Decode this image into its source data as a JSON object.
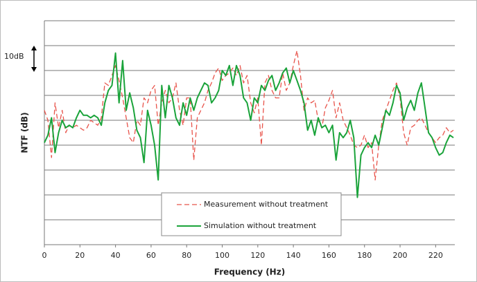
{
  "chart_data": {
    "type": "line",
    "xlabel": "Frequency (Hz)",
    "ylabel": "NTF (dB)",
    "annotation": "10dB",
    "xlim": [
      0,
      230
    ],
    "xticks": [
      0,
      20,
      40,
      60,
      80,
      100,
      120,
      140,
      160,
      180,
      200,
      220
    ],
    "ylim": [
      0,
      90
    ],
    "yticks": [
      10,
      20,
      30,
      40,
      50,
      60,
      70,
      80,
      90
    ],
    "grid": true,
    "x": [
      0,
      2,
      4,
      6,
      8,
      10,
      12,
      14,
      16,
      18,
      20,
      22,
      24,
      26,
      28,
      30,
      32,
      34,
      36,
      38,
      40,
      42,
      44,
      46,
      48,
      50,
      52,
      54,
      56,
      58,
      60,
      62,
      64,
      66,
      68,
      70,
      72,
      74,
      76,
      78,
      80,
      82,
      84,
      86,
      88,
      90,
      92,
      94,
      96,
      98,
      100,
      102,
      104,
      106,
      108,
      110,
      112,
      114,
      116,
      118,
      120,
      122,
      124,
      126,
      128,
      130,
      132,
      134,
      136,
      138,
      140,
      142,
      144,
      146,
      148,
      150,
      152,
      154,
      156,
      158,
      160,
      162,
      164,
      166,
      168,
      170,
      172,
      174,
      176,
      178,
      180,
      182,
      184,
      186,
      188,
      190,
      192,
      194,
      196,
      198,
      200,
      202,
      204,
      206,
      208,
      210,
      212,
      214,
      216,
      218,
      220,
      222,
      224,
      226,
      228,
      230
    ],
    "series": [
      {
        "name": "Measurement without treatment",
        "color": "#e8534a",
        "dashed": true,
        "values": [
          54,
          50,
          35,
          57,
          47,
          54,
          45,
          48,
          47,
          48,
          47,
          46,
          47,
          50,
          49,
          48,
          51,
          65,
          64,
          68,
          72,
          66,
          59,
          51,
          43,
          41,
          50,
          48,
          59,
          57,
          62,
          64,
          48,
          57,
          62,
          57,
          59,
          65,
          54,
          48,
          59,
          59,
          34,
          51,
          54,
          57,
          62,
          65,
          69,
          71,
          66,
          68,
          69,
          71,
          68,
          72,
          65,
          68,
          57,
          53,
          59,
          40,
          65,
          68,
          62,
          59,
          59,
          69,
          62,
          65,
          72,
          78,
          68,
          54,
          59,
          57,
          58,
          50,
          47,
          55,
          58,
          62,
          51,
          57,
          50,
          47,
          44,
          40,
          39,
          40,
          44,
          39,
          41,
          26,
          40,
          50,
          54,
          58,
          62,
          65,
          59,
          45,
          40,
          47,
          48,
          50,
          51,
          48,
          45,
          43,
          41,
          43,
          44,
          47,
          45,
          46
        ]
      },
      {
        "name": "Simulation without treatment",
        "color": "#1aa33a",
        "dashed": false,
        "values": [
          41,
          44,
          51,
          37,
          45,
          50,
          47,
          48,
          47,
          51,
          54,
          52,
          52,
          51,
          52,
          51,
          48,
          57,
          62,
          64,
          77,
          57,
          74,
          54,
          61,
          55,
          46,
          43,
          33,
          54,
          48,
          40,
          26,
          64,
          51,
          64,
          59,
          51,
          48,
          57,
          52,
          59,
          54,
          59,
          62,
          65,
          64,
          57,
          59,
          62,
          70,
          68,
          72,
          64,
          72,
          68,
          59,
          57,
          50,
          59,
          57,
          64,
          62,
          66,
          68,
          62,
          65,
          69,
          71,
          65,
          70,
          66,
          62,
          57,
          46,
          50,
          44,
          51,
          47,
          48,
          45,
          48,
          34,
          45,
          43,
          45,
          50,
          43,
          19,
          36,
          39,
          41,
          39,
          44,
          40,
          47,
          54,
          52,
          57,
          64,
          61,
          50,
          55,
          58,
          54,
          61,
          65,
          55,
          45,
          43,
          39,
          36,
          37,
          41,
          44,
          43
        ]
      }
    ]
  }
}
